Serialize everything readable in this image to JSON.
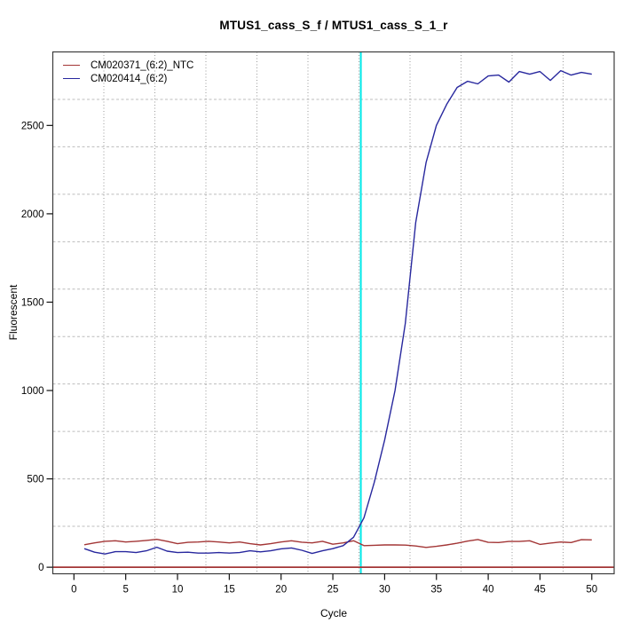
{
  "chart_data": {
    "type": "line",
    "title": "MTUS1_cass_S_f / MTUS1_cass_S_1_r",
    "xlabel": "Cycle",
    "ylabel": "Fluorescent",
    "xlim": [
      -2.04,
      52.16
    ],
    "ylim": [
      -37,
      2916
    ],
    "x_ticks": [
      0,
      5,
      10,
      15,
      20,
      25,
      30,
      35,
      40,
      45,
      50
    ],
    "y_ticks": [
      0,
      500,
      1000,
      1500,
      2000,
      2500
    ],
    "grid": {
      "style": "dotted",
      "divisions": 11,
      "aligned_to_ticks": false
    },
    "legend_position": "top-left",
    "x": [
      1,
      2,
      3,
      4,
      5,
      6,
      7,
      8,
      9,
      10,
      11,
      12,
      13,
      14,
      15,
      16,
      17,
      18,
      19,
      20,
      21,
      22,
      23,
      24,
      25,
      26,
      27,
      28,
      29,
      30,
      31,
      32,
      33,
      34,
      35,
      36,
      37,
      38,
      39,
      40,
      41,
      42,
      43,
      44,
      45,
      46,
      47,
      48,
      49,
      50
    ],
    "series": [
      {
        "name": "CM020371_(6:2)_NTC",
        "color": "#a33636",
        "values": [
          127,
          138,
          147,
          150,
          143,
          147,
          152,
          158,
          147,
          133,
          141,
          143,
          147,
          143,
          138,
          143,
          133,
          126,
          133,
          143,
          150,
          142,
          138,
          147,
          130,
          138,
          150,
          122,
          124,
          126,
          126,
          125,
          120,
          112,
          118,
          126,
          136,
          148,
          157,
          141,
          140,
          146,
          146,
          150,
          129,
          137,
          143,
          140,
          156,
          155
        ]
      },
      {
        "name": "CM020414_(6:2)",
        "color": "#28289e",
        "values": [
          105,
          85,
          75,
          88,
          88,
          83,
          93,
          113,
          91,
          83,
          85,
          80,
          80,
          83,
          80,
          83,
          93,
          87,
          93,
          104,
          109,
          96,
          78,
          93,
          105,
          122,
          170,
          280,
          480,
          720,
          1000,
          1380,
          1950,
          2290,
          2500,
          2620,
          2715,
          2750,
          2735,
          2780,
          2785,
          2745,
          2805,
          2790,
          2805,
          2755,
          2810,
          2785,
          2800,
          2790
        ]
      }
    ],
    "baseline_marker": {
      "value": 0,
      "color": "#a33636"
    },
    "threshold_cycle_marker": {
      "cycle": 27.7,
      "color": "#00e8e8"
    }
  }
}
